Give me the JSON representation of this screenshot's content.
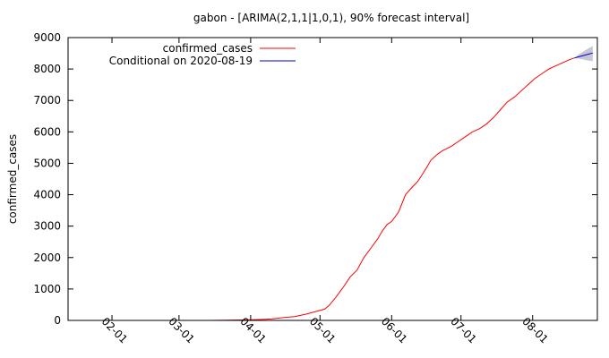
{
  "chart_data": {
    "type": "line",
    "title": "gabon -  [ARIMA(2,1,1|1,0,1), 90% forecast interval]",
    "ylabel": "confirmed_cases",
    "xlabel": "",
    "ylim": [
      0,
      9000
    ],
    "xlim": [
      "2020-01-13",
      "2020-08-29"
    ],
    "y_ticks": [
      0,
      1000,
      2000,
      3000,
      4000,
      5000,
      6000,
      7000,
      8000,
      9000
    ],
    "y_tick_labels": [
      "0",
      "1000",
      "2000",
      "3000",
      "4000",
      "5000",
      "6000",
      "7000",
      "8000",
      "9000"
    ],
    "x_ticks": [
      "2020-02-01",
      "2020-03-01",
      "2020-04-01",
      "2020-05-01",
      "2020-06-01",
      "2020-07-01",
      "2020-08-01"
    ],
    "x_tick_labels": [
      "02-01",
      "03-01",
      "04-01",
      "05-01",
      "06-01",
      "07-01",
      "08-01"
    ],
    "legend_position": "top-right",
    "grid": false,
    "series": [
      {
        "name": "confirmed_cases",
        "color": "#ff0000",
        "x": [
          "2020-03-14",
          "2020-03-25",
          "2020-03-31",
          "2020-04-05",
          "2020-04-10",
          "2020-04-15",
          "2020-04-20",
          "2020-04-25",
          "2020-04-30",
          "2020-05-03",
          "2020-05-05",
          "2020-05-08",
          "2020-05-11",
          "2020-05-14",
          "2020-05-17",
          "2020-05-20",
          "2020-05-23",
          "2020-05-26",
          "2020-05-28",
          "2020-05-30",
          "2020-06-01",
          "2020-06-04",
          "2020-06-07",
          "2020-06-10",
          "2020-06-12",
          "2020-06-13",
          "2020-06-16",
          "2020-06-18",
          "2020-06-21",
          "2020-06-23",
          "2020-06-27",
          "2020-06-30",
          "2020-07-03",
          "2020-07-06",
          "2020-07-09",
          "2020-07-12",
          "2020-07-15",
          "2020-07-18",
          "2020-07-21",
          "2020-07-24",
          "2020-07-27",
          "2020-07-30",
          "2020-08-02",
          "2020-08-05",
          "2020-08-08",
          "2020-08-11",
          "2020-08-14",
          "2020-08-17",
          "2020-08-19"
        ],
        "values": [
          1,
          10,
          18,
          30,
          45,
          90,
          120,
          200,
          300,
          360,
          480,
          750,
          1050,
          1380,
          1600,
          2000,
          2300,
          2600,
          2850,
          3050,
          3150,
          3450,
          4000,
          4250,
          4400,
          4500,
          4850,
          5100,
          5300,
          5400,
          5550,
          5700,
          5850,
          6000,
          6100,
          6250,
          6450,
          6700,
          6950,
          7100,
          7300,
          7500,
          7700,
          7850,
          8000,
          8100,
          8200,
          8300,
          8350
        ]
      },
      {
        "name": "Conditional on 2020-08-19",
        "color": "#0000cc",
        "x": [
          "2020-08-19",
          "2020-08-21",
          "2020-08-23",
          "2020-08-25",
          "2020-08-27"
        ],
        "values": [
          8350,
          8390,
          8430,
          8470,
          8510
        ],
        "lower": [
          8350,
          8330,
          8300,
          8270,
          8250
        ],
        "upper": [
          8350,
          8470,
          8560,
          8650,
          8730
        ]
      }
    ]
  }
}
